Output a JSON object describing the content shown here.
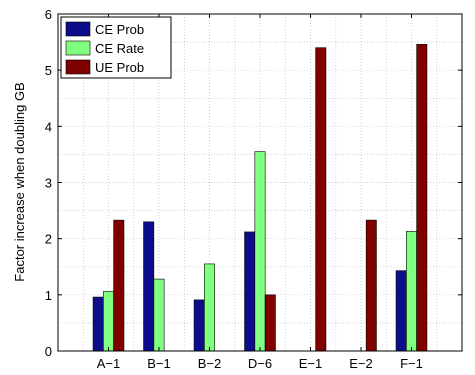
{
  "chart_data": {
    "type": "bar",
    "title": "",
    "xlabel": "",
    "ylabel": "Factor increase when doubling GB",
    "categories": [
      "A−1",
      "B−1",
      "B−2",
      "D−6",
      "E−1",
      "E−2",
      "F−1"
    ],
    "series": [
      {
        "name": "CE Prob",
        "color": "#0d0d8c",
        "values": [
          0.96,
          2.3,
          0.91,
          2.12,
          null,
          null,
          1.43
        ]
      },
      {
        "name": "CE Rate",
        "color": "#80ff80",
        "values": [
          1.06,
          1.28,
          1.55,
          3.55,
          null,
          null,
          2.13
        ]
      },
      {
        "name": "UE Prob",
        "color": "#800000",
        "values": [
          2.33,
          null,
          null,
          1.0,
          5.4,
          2.33,
          5.46
        ]
      }
    ],
    "ylim": [
      0,
      6
    ],
    "yticks": [
      0,
      1,
      2,
      3,
      4,
      5,
      6
    ],
    "grid": true,
    "legend_position": "top-left"
  }
}
